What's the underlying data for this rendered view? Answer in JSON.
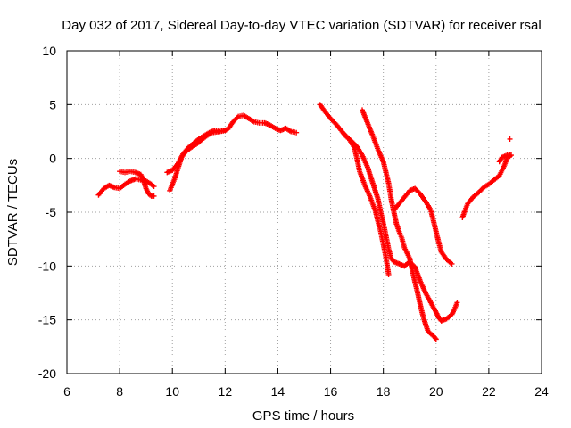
{
  "chart_data": {
    "type": "scatter",
    "title": "Day 032 of 2017, Sidereal Day-to-day VTEC variation (SDTVAR) for receiver rsal",
    "xlabel": "GPS time / hours",
    "ylabel": "SDTVAR / TECUs",
    "xlim": [
      6,
      24
    ],
    "ylim": [
      -20,
      10
    ],
    "xticks": [
      6,
      8,
      10,
      12,
      14,
      16,
      18,
      20,
      22,
      24
    ],
    "yticks": [
      -20,
      -15,
      -10,
      -5,
      0,
      5,
      10
    ],
    "grid": true,
    "marker": "+",
    "series": [
      {
        "name": "SDTVAR",
        "color": "#ff0000",
        "segments": [
          [
            [
              7.2,
              -3.4
            ],
            [
              7.4,
              -2.8
            ],
            [
              7.6,
              -2.5
            ],
            [
              7.8,
              -2.7
            ],
            [
              8.0,
              -2.8
            ],
            [
              8.2,
              -2.4
            ],
            [
              8.4,
              -2.1
            ],
            [
              8.6,
              -1.9
            ],
            [
              8.8,
              -2.0
            ],
            [
              9.0,
              -2.1
            ],
            [
              9.2,
              -2.4
            ],
            [
              9.3,
              -2.6
            ]
          ],
          [
            [
              8.0,
              -1.2
            ],
            [
              8.2,
              -1.3
            ],
            [
              8.4,
              -1.2
            ],
            [
              8.6,
              -1.3
            ],
            [
              8.8,
              -1.5
            ],
            [
              8.9,
              -2.0
            ],
            [
              9.0,
              -2.8
            ],
            [
              9.1,
              -3.3
            ],
            [
              9.2,
              -3.5
            ],
            [
              9.3,
              -3.5
            ]
          ],
          [
            [
              9.8,
              -1.3
            ],
            [
              10.0,
              -1.1
            ],
            [
              10.2,
              -0.5
            ],
            [
              10.4,
              0.4
            ],
            [
              10.6,
              1.0
            ],
            [
              10.8,
              1.4
            ],
            [
              11.0,
              1.8
            ],
            [
              11.2,
              2.1
            ],
            [
              11.4,
              2.4
            ],
            [
              11.6,
              2.6
            ],
            [
              11.8,
              2.5
            ],
            [
              12.0,
              2.6
            ]
          ],
          [
            [
              9.9,
              -3.0
            ],
            [
              10.0,
              -2.4
            ],
            [
              10.1,
              -1.8
            ],
            [
              10.2,
              -1.0
            ],
            [
              10.35,
              0.1
            ],
            [
              10.5,
              0.6
            ],
            [
              10.7,
              1.0
            ],
            [
              10.9,
              1.3
            ],
            [
              11.1,
              1.7
            ],
            [
              11.3,
              2.1
            ],
            [
              11.5,
              2.4
            ],
            [
              11.8,
              2.5
            ],
            [
              12.1,
              2.7
            ],
            [
              12.3,
              3.4
            ],
            [
              12.5,
              3.9
            ],
            [
              12.7,
              4.0
            ],
            [
              12.9,
              3.7
            ],
            [
              13.1,
              3.4
            ],
            [
              13.3,
              3.3
            ],
            [
              13.5,
              3.3
            ],
            [
              13.7,
              3.1
            ],
            [
              13.9,
              2.8
            ],
            [
              14.1,
              2.6
            ],
            [
              14.3,
              2.8
            ],
            [
              14.5,
              2.5
            ],
            [
              14.7,
              2.4
            ]
          ],
          [
            [
              15.6,
              5.0
            ],
            [
              15.8,
              4.3
            ],
            [
              16.0,
              3.7
            ],
            [
              16.2,
              3.2
            ],
            [
              16.4,
              2.6
            ],
            [
              16.6,
              2.0
            ],
            [
              16.8,
              1.6
            ],
            [
              17.0,
              1.1
            ],
            [
              17.2,
              0.3
            ],
            [
              17.4,
              -0.8
            ],
            [
              17.6,
              -2.3
            ],
            [
              17.8,
              -3.8
            ],
            [
              17.9,
              -5.0
            ],
            [
              18.0,
              -6.0
            ],
            [
              18.1,
              -7.2
            ],
            [
              18.2,
              -8.4
            ],
            [
              18.3,
              -9.3
            ],
            [
              18.4,
              -9.6
            ],
            [
              18.6,
              -9.8
            ],
            [
              18.8,
              -10.0
            ],
            [
              19.0,
              -9.6
            ],
            [
              19.2,
              -10.1
            ],
            [
              19.4,
              -11.4
            ],
            [
              19.6,
              -12.5
            ],
            [
              19.8,
              -13.4
            ],
            [
              20.0,
              -14.3
            ],
            [
              20.1,
              -14.8
            ],
            [
              20.2,
              -15.1
            ],
            [
              20.4,
              -14.9
            ],
            [
              20.6,
              -14.5
            ],
            [
              20.7,
              -14.0
            ],
            [
              20.8,
              -13.4
            ]
          ],
          [
            [
              16.5,
              2.3
            ],
            [
              16.7,
              1.8
            ],
            [
              16.9,
              1.0
            ],
            [
              17.0,
              0.0
            ],
            [
              17.1,
              -1.2
            ],
            [
              17.3,
              -2.5
            ],
            [
              17.5,
              -3.6
            ],
            [
              17.7,
              -4.9
            ],
            [
              17.8,
              -5.9
            ],
            [
              17.9,
              -6.8
            ],
            [
              18.0,
              -8.0
            ],
            [
              18.1,
              -9.2
            ],
            [
              18.2,
              -10.8
            ]
          ],
          [
            [
              17.2,
              4.5
            ],
            [
              17.4,
              3.3
            ],
            [
              17.6,
              2.1
            ],
            [
              17.8,
              0.8
            ],
            [
              18.0,
              -0.3
            ],
            [
              18.1,
              -1.3
            ],
            [
              18.2,
              -2.3
            ],
            [
              18.3,
              -3.8
            ],
            [
              18.4,
              -5.0
            ],
            [
              18.5,
              -6.1
            ],
            [
              18.6,
              -6.8
            ],
            [
              18.7,
              -7.4
            ],
            [
              18.8,
              -8.3
            ],
            [
              19.0,
              -9.3
            ],
            [
              19.1,
              -10.4
            ],
            [
              19.2,
              -11.5
            ],
            [
              19.3,
              -12.5
            ],
            [
              19.4,
              -13.6
            ],
            [
              19.5,
              -14.6
            ],
            [
              19.6,
              -15.4
            ],
            [
              19.7,
              -16.1
            ],
            [
              19.9,
              -16.5
            ],
            [
              20.0,
              -16.8
            ]
          ],
          [
            [
              18.4,
              -4.8
            ],
            [
              18.6,
              -4.2
            ],
            [
              18.8,
              -3.6
            ],
            [
              19.0,
              -3.0
            ],
            [
              19.2,
              -2.8
            ],
            [
              19.4,
              -3.3
            ],
            [
              19.6,
              -4.0
            ],
            [
              19.8,
              -4.8
            ],
            [
              19.9,
              -5.8
            ],
            [
              20.0,
              -6.8
            ],
            [
              20.1,
              -7.8
            ],
            [
              20.2,
              -8.7
            ],
            [
              20.4,
              -9.4
            ],
            [
              20.6,
              -9.8
            ]
          ],
          [
            [
              21.0,
              -5.5
            ],
            [
              21.1,
              -4.8
            ],
            [
              21.2,
              -4.2
            ],
            [
              21.4,
              -3.6
            ],
            [
              21.6,
              -3.2
            ],
            [
              21.8,
              -2.7
            ],
            [
              22.0,
              -2.4
            ],
            [
              22.2,
              -2.0
            ],
            [
              22.4,
              -1.6
            ],
            [
              22.6,
              -0.6
            ],
            [
              22.7,
              0.1
            ],
            [
              22.8,
              0.3
            ]
          ],
          [
            [
              22.4,
              -0.3
            ],
            [
              22.5,
              0.1
            ],
            [
              22.6,
              0.2
            ],
            [
              22.7,
              0.3
            ],
            [
              22.8,
              0.2
            ],
            [
              22.85,
              0.3
            ]
          ],
          [
            [
              22.8,
              1.8
            ]
          ]
        ]
      }
    ]
  }
}
